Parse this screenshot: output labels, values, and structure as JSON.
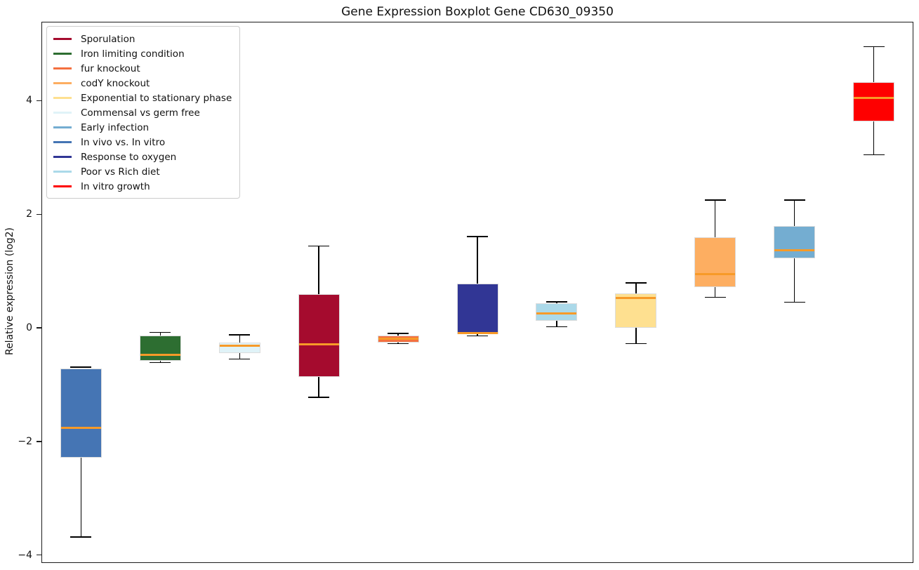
{
  "chart_data": {
    "type": "boxplot",
    "title": "Gene Expression Boxplot Gene CD630_09350",
    "xlabel": "",
    "ylabel": "Relative expression (log2)",
    "ylim": [
      -4.14,
      5.39
    ],
    "grid": false,
    "legend_position": "upper-left",
    "median_color": "#f79a28",
    "whisker_color": "#000000",
    "box_edge_color": "#dcdcdc",
    "yticks": [
      {
        "value": 4,
        "label": "4"
      },
      {
        "value": 2,
        "label": "2"
      },
      {
        "value": 0,
        "label": "0"
      },
      {
        "value": -2,
        "label": "−2"
      },
      {
        "value": -4,
        "label": "−4"
      }
    ],
    "legend": [
      {
        "label": "Sporulation",
        "color": "#a50b2e"
      },
      {
        "label": "Iron limiting condition",
        "color": "#2d6e31"
      },
      {
        "label": "fur knockout",
        "color": "#f4703f"
      },
      {
        "label": "codY knockout",
        "color": "#fdae61"
      },
      {
        "label": "Exponential to stationary phase",
        "color": "#fee090"
      },
      {
        "label": "Commensal vs germ free",
        "color": "#e0f3f8"
      },
      {
        "label": "Early infection",
        "color": "#74add1"
      },
      {
        "label": "In vivo vs. In vitro",
        "color": "#4575b4"
      },
      {
        "label": "Response to oxygen",
        "color": "#313695"
      },
      {
        "label": "Poor vs Rich diet",
        "color": "#abd9e9"
      },
      {
        "label": "In vitro growth",
        "color": "#fe0000"
      }
    ],
    "series": [
      {
        "name": "In vivo vs. In vitro",
        "color": "#4575b4",
        "whisker_low": -3.68,
        "q1": -2.28,
        "median": -1.76,
        "q3": -0.71,
        "whisker_high": -0.69
      },
      {
        "name": "Iron limiting condition",
        "color": "#2d6e31",
        "whisker_low": -0.61,
        "q1": -0.58,
        "median": -0.47,
        "q3": -0.14,
        "whisker_high": -0.08
      },
      {
        "name": "Commensal vs germ free",
        "color": "#e0f3f8",
        "whisker_low": -0.55,
        "q1": -0.45,
        "median": -0.32,
        "q3": -0.26,
        "whisker_high": -0.12
      },
      {
        "name": "Sporulation",
        "color": "#a50b2e",
        "whisker_low": -1.22,
        "q1": -0.86,
        "median": -0.29,
        "q3": 0.6,
        "whisker_high": 1.44
      },
      {
        "name": "fur knockout",
        "color": "#f4703f",
        "whisker_low": -0.28,
        "q1": -0.26,
        "median": -0.19,
        "q3": -0.14,
        "whisker_high": -0.1
      },
      {
        "name": "Response to oxygen",
        "color": "#313695",
        "whisker_low": -0.14,
        "q1": -0.11,
        "median": -0.09,
        "q3": 0.78,
        "whisker_high": 1.61
      },
      {
        "name": "Poor vs Rich diet",
        "color": "#abd9e9",
        "whisker_low": 0.02,
        "q1": 0.13,
        "median": 0.25,
        "q3": 0.43,
        "whisker_high": 0.46
      },
      {
        "name": "Exponential to stationary phase",
        "color": "#fee090",
        "whisker_low": -0.28,
        "q1": 0.0,
        "median": 0.53,
        "q3": 0.61,
        "whisker_high": 0.79
      },
      {
        "name": "codY knockout",
        "color": "#fdae61",
        "whisker_low": 0.54,
        "q1": 0.72,
        "median": 0.95,
        "q3": 1.59,
        "whisker_high": 2.25
      },
      {
        "name": "Early infection",
        "color": "#74add1",
        "whisker_low": 0.45,
        "q1": 1.22,
        "median": 1.37,
        "q3": 1.79,
        "whisker_high": 2.25
      },
      {
        "name": "In vitro growth",
        "color": "#fe0000",
        "whisker_low": 3.05,
        "q1": 3.64,
        "median": 4.05,
        "q3": 4.33,
        "whisker_high": 4.95
      }
    ]
  }
}
